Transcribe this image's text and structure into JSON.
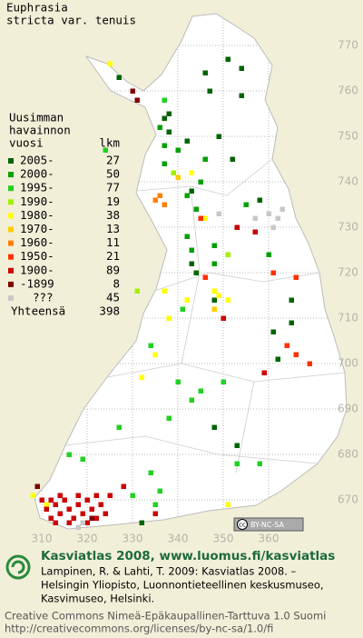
{
  "title": [
    "Euphrasia",
    "stricta var. tenuis"
  ],
  "legend": {
    "heading": [
      "Uusimman",
      "havainnon",
      "vuosi"
    ],
    "count_heading": "lkm",
    "items": [
      {
        "label": "2005-",
        "count": 27,
        "color": "#006400"
      },
      {
        "label": "2000-",
        "count": 50,
        "color": "#00a000"
      },
      {
        "label": "1995-",
        "count": 77,
        "color": "#22d022"
      },
      {
        "label": "1990-",
        "count": 19,
        "color": "#a0f000"
      },
      {
        "label": "1980-",
        "count": 38,
        "color": "#ffff00"
      },
      {
        "label": "1970-",
        "count": 13,
        "color": "#ffcc00"
      },
      {
        "label": "1960-",
        "count": 11,
        "color": "#ff8000"
      },
      {
        "label": "1950-",
        "count": 21,
        "color": "#ff3000"
      },
      {
        "label": "1900-",
        "count": 89,
        "color": "#cc0000"
      },
      {
        "label": "-1899",
        "count": 8,
        "color": "#800000"
      },
      {
        "label": "???",
        "count": 45,
        "color": "#c8c8c8"
      }
    ],
    "total": {
      "label": "Yhteensä",
      "count": 398
    }
  },
  "map": {
    "xticks": [
      310,
      320,
      330,
      340,
      350,
      360
    ],
    "yticks": [
      770,
      760,
      750,
      740,
      730,
      720,
      710,
      700,
      690,
      680,
      670
    ],
    "squares": [
      [
        346,
        764,
        0
      ],
      [
        351,
        767,
        0
      ],
      [
        354,
        765,
        0
      ],
      [
        327,
        763,
        0
      ],
      [
        347,
        760,
        0
      ],
      [
        354,
        759,
        0
      ],
      [
        338,
        755,
        0
      ],
      [
        337,
        754,
        0
      ],
      [
        338,
        751,
        0
      ],
      [
        342,
        749,
        0
      ],
      [
        349,
        750,
        0
      ],
      [
        352,
        745,
        0
      ],
      [
        343,
        738,
        0
      ],
      [
        358,
        736,
        0
      ],
      [
        343,
        722,
        0
      ],
      [
        344,
        720,
        0
      ],
      [
        348,
        714,
        0
      ],
      [
        365,
        714,
        0
      ],
      [
        361,
        707,
        0
      ],
      [
        365,
        709,
        0
      ],
      [
        362,
        701,
        0
      ],
      [
        353,
        682,
        0
      ],
      [
        348,
        686,
        0
      ],
      [
        332,
        665,
        0
      ],
      [
        336,
        752,
        1
      ],
      [
        337,
        748,
        1
      ],
      [
        340,
        747,
        1
      ],
      [
        337,
        744,
        1
      ],
      [
        346,
        745,
        1
      ],
      [
        345,
        740,
        1
      ],
      [
        342,
        737,
        1
      ],
      [
        344,
        734,
        1
      ],
      [
        355,
        735,
        1
      ],
      [
        342,
        728,
        1
      ],
      [
        348,
        726,
        1
      ],
      [
        360,
        724,
        1
      ],
      [
        343,
        725,
        1
      ],
      [
        348,
        722,
        1
      ],
      [
        341,
        712,
        2
      ],
      [
        340,
        696,
        2
      ],
      [
        343,
        692,
        2
      ],
      [
        338,
        688,
        2
      ],
      [
        334,
        676,
        2
      ],
      [
        336,
        672,
        2
      ],
      [
        353,
        678,
        2
      ],
      [
        358,
        678,
        2
      ],
      [
        337,
        758,
        2
      ],
      [
        334,
        704,
        2
      ],
      [
        345,
        694,
        2
      ],
      [
        350,
        696,
        2
      ],
      [
        316,
        680,
        2
      ],
      [
        319,
        679,
        2
      ],
      [
        330,
        671,
        2
      ],
      [
        335,
        669,
        2
      ],
      [
        324,
        747,
        2
      ],
      [
        327,
        686,
        2
      ],
      [
        339,
        742,
        3
      ],
      [
        351,
        724,
        3
      ],
      [
        331,
        716,
        3
      ],
      [
        325,
        766,
        4
      ],
      [
        343,
        742,
        4
      ],
      [
        346,
        732,
        4
      ],
      [
        348,
        716,
        4
      ],
      [
        349,
        715,
        4
      ],
      [
        351,
        714,
        4
      ],
      [
        337,
        716,
        4
      ],
      [
        342,
        714,
        4
      ],
      [
        338,
        710,
        4
      ],
      [
        332,
        697,
        4
      ],
      [
        335,
        702,
        4
      ],
      [
        351,
        669,
        4
      ],
      [
        311,
        669,
        4
      ],
      [
        308,
        671,
        4
      ],
      [
        340,
        741,
        5
      ],
      [
        348,
        712,
        5
      ],
      [
        336,
        737,
        6
      ],
      [
        337,
        735,
        6
      ],
      [
        335,
        736,
        6
      ],
      [
        346,
        719,
        7
      ],
      [
        345,
        732,
        7
      ],
      [
        361,
        720,
        7
      ],
      [
        366,
        719,
        7
      ],
      [
        364,
        704,
        7
      ],
      [
        366,
        702,
        7
      ],
      [
        369,
        700,
        7
      ],
      [
        357,
        729,
        8
      ],
      [
        353,
        730,
        8
      ],
      [
        328,
        673,
        8
      ],
      [
        335,
        667,
        8
      ],
      [
        350,
        710,
        8
      ],
      [
        359,
        698,
        8
      ],
      [
        310,
        670,
        8
      ],
      [
        311,
        668,
        8
      ],
      [
        312,
        670,
        8
      ],
      [
        313,
        669,
        8
      ],
      [
        314,
        667,
        8
      ],
      [
        315,
        670,
        8
      ],
      [
        316,
        668,
        8
      ],
      [
        317,
        666,
        8
      ],
      [
        318,
        669,
        8
      ],
      [
        319,
        667,
        8
      ],
      [
        320,
        670,
        8
      ],
      [
        321,
        668,
        8
      ],
      [
        322,
        666,
        8
      ],
      [
        323,
        669,
        8
      ],
      [
        324,
        667,
        8
      ],
      [
        325,
        671,
        8
      ],
      [
        312,
        666,
        8
      ],
      [
        314,
        671,
        8
      ],
      [
        316,
        665,
        8
      ],
      [
        318,
        671,
        8
      ],
      [
        320,
        665,
        8
      ],
      [
        322,
        671,
        8
      ],
      [
        313,
        665,
        8
      ],
      [
        330,
        760,
        9
      ],
      [
        331,
        758,
        9
      ],
      [
        309,
        673,
        9
      ],
      [
        321,
        666,
        9
      ],
      [
        360,
        733,
        10
      ],
      [
        362,
        732,
        10
      ],
      [
        363,
        734,
        10
      ],
      [
        361,
        730,
        10
      ],
      [
        357,
        732,
        10
      ],
      [
        349,
        733,
        10
      ],
      [
        318,
        664,
        10
      ],
      [
        319,
        665,
        10
      ]
    ]
  },
  "badge": [
    "cc",
    "BY-NC-SA"
  ],
  "footer": {
    "title": "Kasviatlas 2008, www.luomus.fi/kasviatlas",
    "citation": [
      "Lampinen, R. & Lahti, T. 2009: Kasviatlas 2008. –",
      "Helsingin Yliopisto, Luonnontieteellinen keskusmuseo,",
      "Kasvimuseo, Helsinki."
    ],
    "license": [
      "Creative Commons Nimeä-Epäkaupallinen-Tarttuva 1.0 Suomi",
      "http://creativecommons.org/licenses/by-nc-sa/1.0/fi"
    ]
  }
}
